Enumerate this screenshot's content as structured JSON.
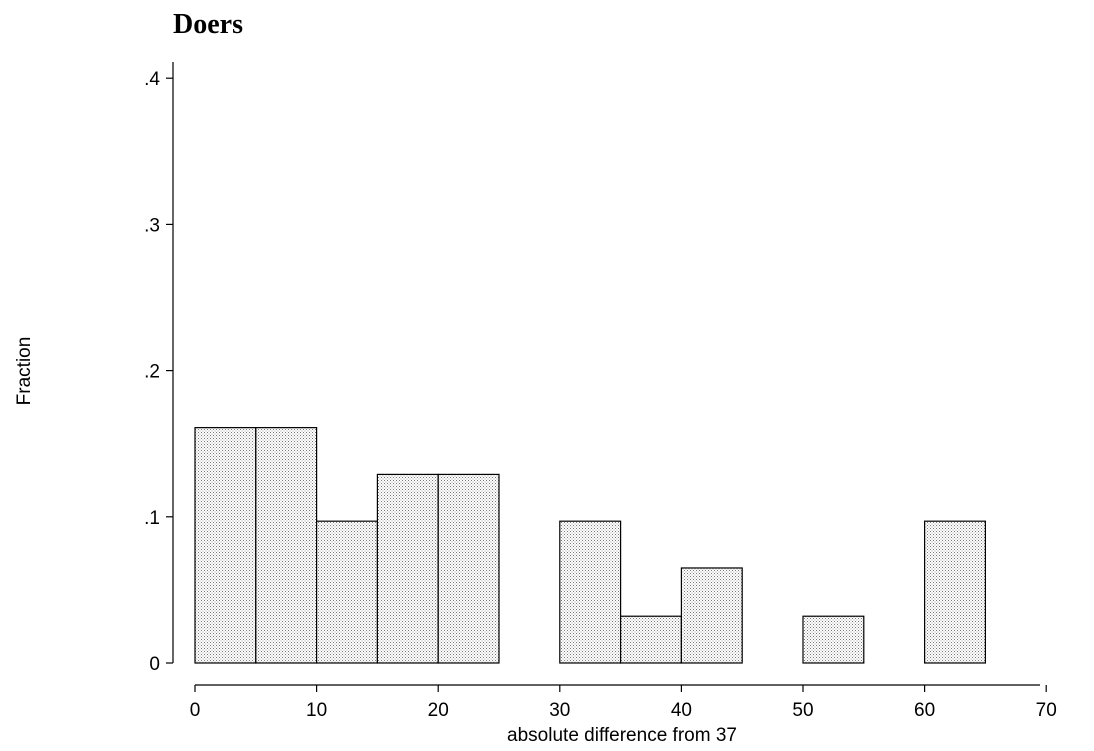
{
  "chart_data": {
    "type": "bar",
    "title": "Doers",
    "xlabel": "absolute difference from 37",
    "ylabel": "Fraction",
    "xlim": [
      -2,
      72
    ],
    "ylim": [
      0,
      0.4
    ],
    "bin_width": 5,
    "bins": [
      {
        "start": 0,
        "end": 5,
        "value": 0.161
      },
      {
        "start": 5,
        "end": 10,
        "value": 0.161
      },
      {
        "start": 10,
        "end": 15,
        "value": 0.097
      },
      {
        "start": 15,
        "end": 20,
        "value": 0.129
      },
      {
        "start": 20,
        "end": 25,
        "value": 0.129
      },
      {
        "start": 30,
        "end": 35,
        "value": 0.097
      },
      {
        "start": 35,
        "end": 40,
        "value": 0.032
      },
      {
        "start": 40,
        "end": 45,
        "value": 0.065
      },
      {
        "start": 50,
        "end": 55,
        "value": 0.032
      },
      {
        "start": 60,
        "end": 65,
        "value": 0.097
      }
    ],
    "x_ticks": [
      {
        "value": 0,
        "label": "0"
      },
      {
        "value": 10,
        "label": "10"
      },
      {
        "value": 20,
        "label": "20"
      },
      {
        "value": 30,
        "label": "30"
      },
      {
        "value": 40,
        "label": "40"
      },
      {
        "value": 50,
        "label": "50"
      },
      {
        "value": 60,
        "label": "60"
      },
      {
        "value": 70,
        "label": "70"
      }
    ],
    "y_ticks": [
      {
        "value": 0,
        "label": "0"
      },
      {
        "value": 0.1,
        "label": ".1"
      },
      {
        "value": 0.2,
        "label": ".2"
      },
      {
        "value": 0.3,
        "label": ".3"
      },
      {
        "value": 0.4,
        "label": ".4"
      }
    ],
    "bar_fill": "dotted light gray",
    "grid": false
  }
}
